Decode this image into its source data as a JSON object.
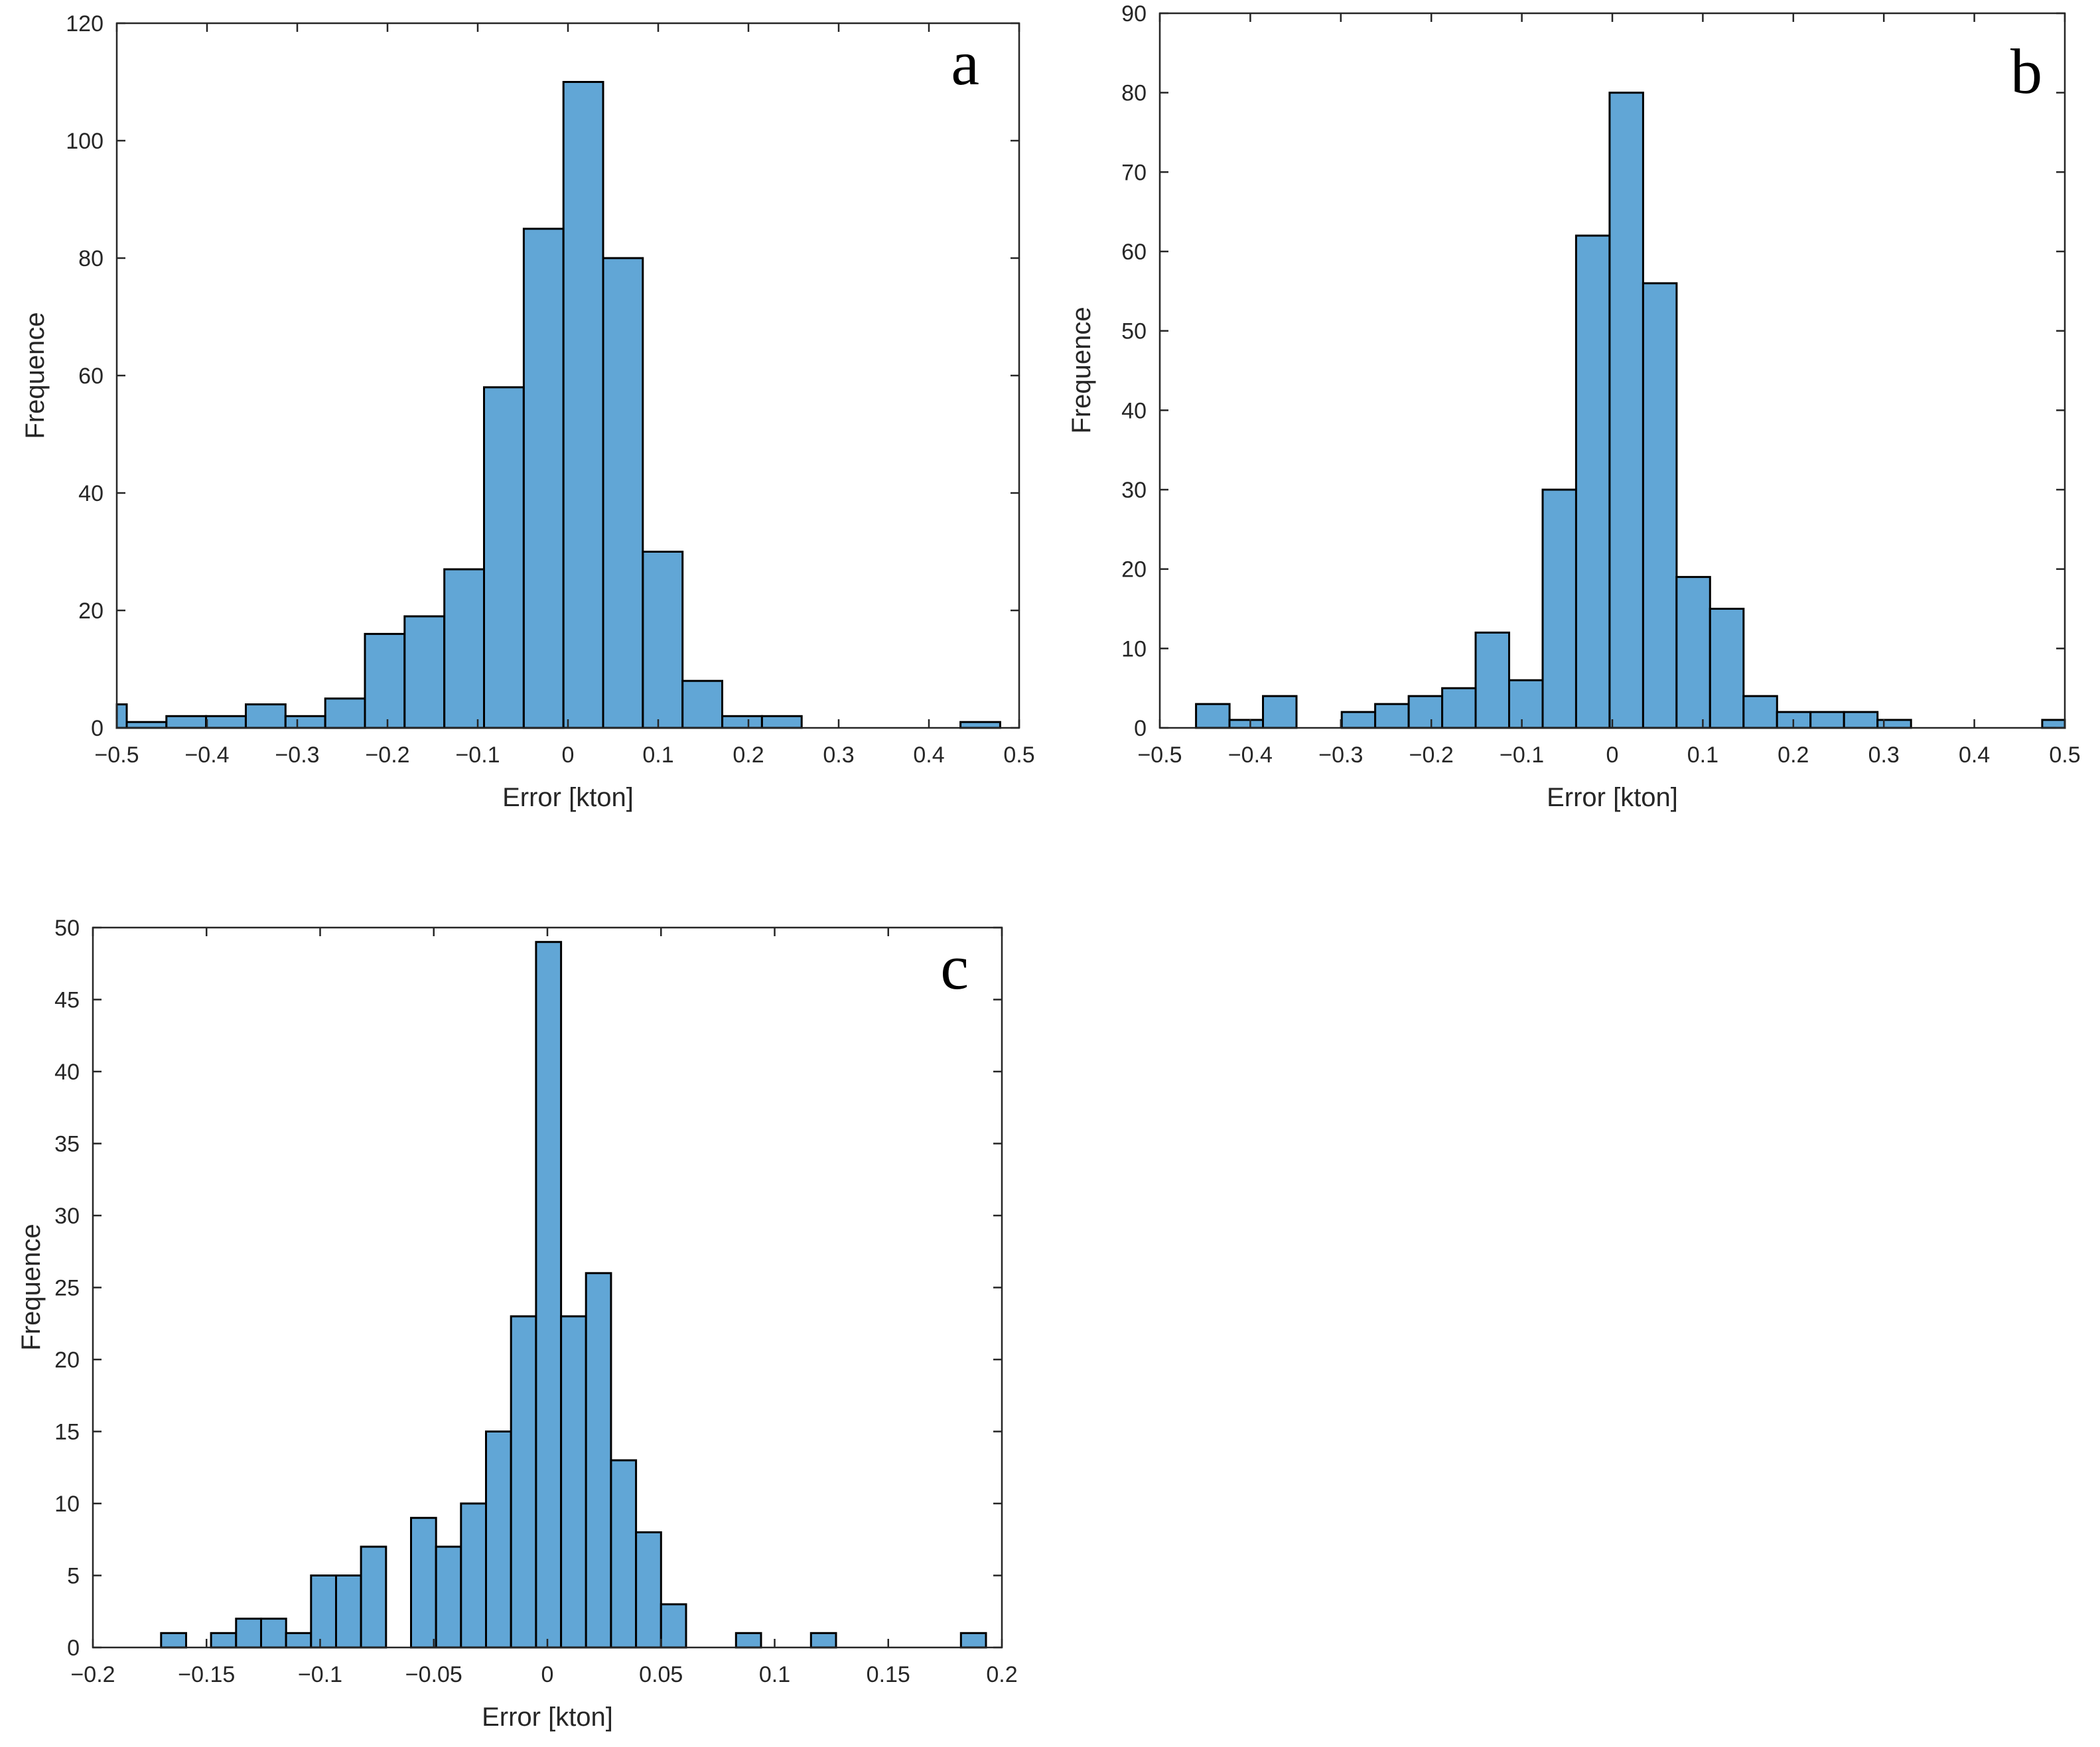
{
  "colors": {
    "bar_fill": "#61A6D6",
    "bar_edge": "#000000",
    "axis": "#262626"
  },
  "chart_data": [
    {
      "type": "bar",
      "panel": "a",
      "xlabel": "Error [kton]",
      "ylabel": "Frequence",
      "xlim": [
        -0.5,
        0.5
      ],
      "ylim": [
        0,
        120
      ],
      "xticks": [
        -0.5,
        -0.4,
        -0.3,
        -0.2,
        -0.1,
        0,
        0.1,
        0.2,
        0.3,
        0.4,
        0.5
      ],
      "xtick_labels": [
        "−0.5",
        "−0.4",
        "−0.3",
        "−0.2",
        "−0.1",
        "0",
        "0.1",
        "0.2",
        "0.3",
        "0.4",
        "0.5"
      ],
      "yticks": [
        0,
        20,
        40,
        60,
        80,
        100,
        120
      ],
      "ytick_labels": [
        "0",
        "20",
        "40",
        "60",
        "80",
        "100",
        "120"
      ],
      "bins": [
        {
          "x0": -0.5,
          "x1": -0.489,
          "count": 4
        },
        {
          "x0": -0.489,
          "x1": -0.445,
          "count": 1
        },
        {
          "x0": -0.445,
          "x1": -0.401,
          "count": 2
        },
        {
          "x0": -0.401,
          "x1": -0.357,
          "count": 2
        },
        {
          "x0": -0.357,
          "x1": -0.313,
          "count": 4
        },
        {
          "x0": -0.313,
          "x1": -0.269,
          "count": 2
        },
        {
          "x0": -0.269,
          "x1": -0.225,
          "count": 5
        },
        {
          "x0": -0.225,
          "x1": -0.181,
          "count": 16
        },
        {
          "x0": -0.181,
          "x1": -0.137,
          "count": 19
        },
        {
          "x0": -0.137,
          "x1": -0.093,
          "count": 27
        },
        {
          "x0": -0.093,
          "x1": -0.049,
          "count": 58
        },
        {
          "x0": -0.049,
          "x1": -0.005,
          "count": 85
        },
        {
          "x0": -0.005,
          "x1": 0.039,
          "count": 110
        },
        {
          "x0": 0.039,
          "x1": 0.083,
          "count": 80
        },
        {
          "x0": 0.083,
          "x1": 0.127,
          "count": 30
        },
        {
          "x0": 0.127,
          "x1": 0.171,
          "count": 8
        },
        {
          "x0": 0.171,
          "x1": 0.215,
          "count": 2
        },
        {
          "x0": 0.215,
          "x1": 0.259,
          "count": 2
        },
        {
          "x0": 0.435,
          "x1": 0.479,
          "count": 1
        }
      ]
    },
    {
      "type": "bar",
      "panel": "b",
      "xlabel": "Error [kton]",
      "ylabel": "Frequence",
      "xlim": [
        -0.5,
        0.5
      ],
      "ylim": [
        0,
        90
      ],
      "xticks": [
        -0.5,
        -0.4,
        -0.3,
        -0.2,
        -0.1,
        0,
        0.1,
        0.2,
        0.3,
        0.4,
        0.5
      ],
      "xtick_labels": [
        "−0.5",
        "−0.4",
        "−0.3",
        "−0.2",
        "−0.1",
        "0",
        "0.1",
        "0.2",
        "0.3",
        "0.4",
        "0.5"
      ],
      "yticks": [
        0,
        10,
        20,
        30,
        40,
        50,
        60,
        70,
        80,
        90
      ],
      "ytick_labels": [
        "0",
        "10",
        "20",
        "30",
        "40",
        "50",
        "60",
        "70",
        "80",
        "90"
      ],
      "bins": [
        {
          "x0": -0.46,
          "x1": -0.423,
          "count": 3
        },
        {
          "x0": -0.423,
          "x1": -0.386,
          "count": 1
        },
        {
          "x0": -0.386,
          "x1": -0.349,
          "count": 4
        },
        {
          "x0": -0.299,
          "x1": -0.262,
          "count": 2
        },
        {
          "x0": -0.262,
          "x1": -0.225,
          "count": 3
        },
        {
          "x0": -0.225,
          "x1": -0.188,
          "count": 4
        },
        {
          "x0": -0.188,
          "x1": -0.151,
          "count": 5
        },
        {
          "x0": -0.151,
          "x1": -0.114,
          "count": 12
        },
        {
          "x0": -0.114,
          "x1": -0.077,
          "count": 6
        },
        {
          "x0": -0.077,
          "x1": -0.04,
          "count": 30
        },
        {
          "x0": -0.04,
          "x1": -0.003,
          "count": 62
        },
        {
          "x0": -0.003,
          "x1": 0.034,
          "count": 80
        },
        {
          "x0": 0.034,
          "x1": 0.071,
          "count": 56
        },
        {
          "x0": 0.071,
          "x1": 0.108,
          "count": 19
        },
        {
          "x0": 0.108,
          "x1": 0.145,
          "count": 15
        },
        {
          "x0": 0.145,
          "x1": 0.182,
          "count": 4
        },
        {
          "x0": 0.182,
          "x1": 0.219,
          "count": 2
        },
        {
          "x0": 0.219,
          "x1": 0.256,
          "count": 2
        },
        {
          "x0": 0.256,
          "x1": 0.293,
          "count": 2
        },
        {
          "x0": 0.293,
          "x1": 0.33,
          "count": 1
        },
        {
          "x0": 0.475,
          "x1": 0.5,
          "count": 1
        }
      ]
    },
    {
      "type": "bar",
      "panel": "c",
      "xlabel": "Error [kton]",
      "ylabel": "Frequence",
      "xlim": [
        -0.2,
        0.2
      ],
      "ylim": [
        0,
        50
      ],
      "xticks": [
        -0.2,
        -0.15,
        -0.1,
        -0.05,
        0,
        0.05,
        0.1,
        0.15,
        0.2
      ],
      "xtick_labels": [
        "−0.2",
        "−0.15",
        "−0.1",
        "−0.05",
        "0",
        "0.05",
        "0.1",
        "0.15",
        "0.2"
      ],
      "yticks": [
        0,
        5,
        10,
        15,
        20,
        25,
        30,
        35,
        40,
        45,
        50
      ],
      "ytick_labels": [
        "0",
        "5",
        "10",
        "15",
        "20",
        "25",
        "30",
        "35",
        "40",
        "45",
        "50"
      ],
      "bins": [
        {
          "x0": -0.17,
          "x1": -0.159,
          "count": 1
        },
        {
          "x0": -0.148,
          "x1": -0.137,
          "count": 1
        },
        {
          "x0": -0.137,
          "x1": -0.126,
          "count": 2
        },
        {
          "x0": -0.126,
          "x1": -0.115,
          "count": 2
        },
        {
          "x0": -0.115,
          "x1": -0.104,
          "count": 1
        },
        {
          "x0": -0.104,
          "x1": -0.093,
          "count": 5
        },
        {
          "x0": -0.093,
          "x1": -0.082,
          "count": 5
        },
        {
          "x0": -0.082,
          "x1": -0.071,
          "count": 7
        },
        {
          "x0": -0.06,
          "x1": -0.049,
          "count": 9
        },
        {
          "x0": -0.049,
          "x1": -0.038,
          "count": 7
        },
        {
          "x0": -0.038,
          "x1": -0.027,
          "count": 10
        },
        {
          "x0": -0.027,
          "x1": -0.016,
          "count": 15
        },
        {
          "x0": -0.016,
          "x1": -0.005,
          "count": 23
        },
        {
          "x0": -0.005,
          "x1": 0.006,
          "count": 49
        },
        {
          "x0": 0.006,
          "x1": 0.017,
          "count": 23
        },
        {
          "x0": 0.017,
          "x1": 0.028,
          "count": 26
        },
        {
          "x0": 0.028,
          "x1": 0.039,
          "count": 13
        },
        {
          "x0": 0.039,
          "x1": 0.05,
          "count": 8
        },
        {
          "x0": 0.05,
          "x1": 0.061,
          "count": 3
        },
        {
          "x0": 0.083,
          "x1": 0.094,
          "count": 1
        },
        {
          "x0": 0.116,
          "x1": 0.127,
          "count": 1
        },
        {
          "x0": 0.182,
          "x1": 0.193,
          "count": 1
        }
      ]
    }
  ]
}
